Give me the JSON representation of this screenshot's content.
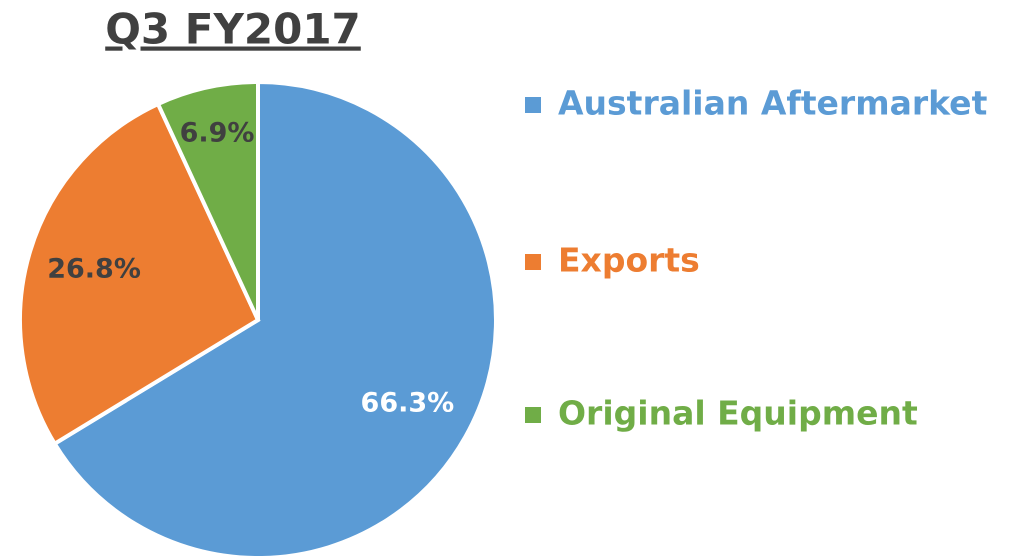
{
  "chart_data": {
    "type": "pie",
    "title": "Q3 FY2017",
    "categories": [
      "Australian Aftermarket",
      "Exports",
      "Original Equipment"
    ],
    "values": [
      66.3,
      26.8,
      6.9
    ],
    "value_labels": [
      "66.3%",
      "26.8%",
      "6.9%"
    ],
    "colors": [
      "#5b9bd5",
      "#ed7d31",
      "#70ad47"
    ],
    "label_colors": [
      "#ffffff",
      "#404040",
      "#404040"
    ],
    "legend": "right"
  }
}
